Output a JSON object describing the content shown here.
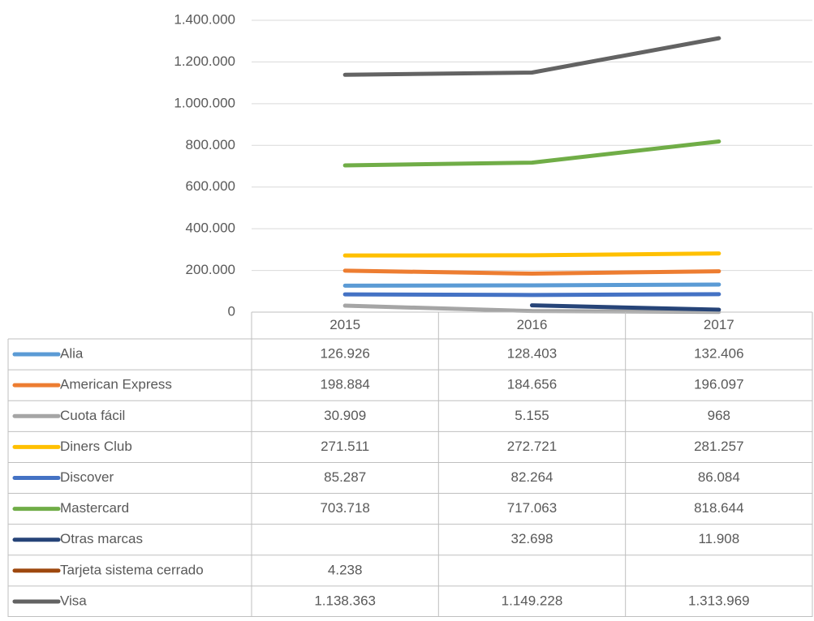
{
  "chart_data": {
    "type": "line",
    "categories": [
      "2015",
      "2016",
      "2017"
    ],
    "ylim": [
      0,
      1400000
    ],
    "yticks": [
      0,
      {
        "value": 200000,
        "label": "200.000"
      },
      {
        "value": 400000,
        "label": "400.000"
      },
      {
        "value": 600000,
        "label": "600.000"
      },
      {
        "value": 800000,
        "label": "800.000"
      },
      {
        "value": 1000000,
        "label": "1.000.000"
      },
      {
        "value": 1200000,
        "label": "1.200.000"
      },
      {
        "value": 1400000,
        "label": "1.400.000"
      }
    ],
    "grid": true,
    "series": [
      {
        "name": "Alia",
        "color": "#5b9bd5",
        "values": [
          126926,
          128403,
          132406
        ],
        "value_labels": [
          "126.926",
          "128.403",
          "132.406"
        ]
      },
      {
        "name": "American Express",
        "color": "#ed7d31",
        "values": [
          198884,
          184656,
          196097
        ],
        "value_labels": [
          "198.884",
          "184.656",
          "196.097"
        ]
      },
      {
        "name": "Cuota fácil",
        "color": "#a5a5a5",
        "values": [
          30909,
          5155,
          968
        ],
        "value_labels": [
          "30.909",
          "5.155",
          "968"
        ]
      },
      {
        "name": "Diners Club",
        "color": "#ffc000",
        "values": [
          271511,
          272721,
          281257
        ],
        "value_labels": [
          "271.511",
          "272.721",
          "281.257"
        ]
      },
      {
        "name": "Discover",
        "color": "#4472c4",
        "values": [
          85287,
          82264,
          86084
        ],
        "value_labels": [
          "85.287",
          "82.264",
          "86.084"
        ]
      },
      {
        "name": "Mastercard",
        "color": "#70ad47",
        "values": [
          703718,
          717063,
          818644
        ],
        "value_labels": [
          "703.718",
          "717.063",
          "818.644"
        ]
      },
      {
        "name": "Otras marcas",
        "color": "#264478",
        "values": [
          null,
          32698,
          11908
        ],
        "value_labels": [
          null,
          "32.698",
          "11.908"
        ]
      },
      {
        "name": "Tarjeta sistema cerrado",
        "color": "#9e480e",
        "values": [
          4238,
          null,
          null
        ],
        "value_labels": [
          "4.238",
          null,
          null
        ]
      },
      {
        "name": "Visa",
        "color": "#636363",
        "values": [
          1138363,
          1149228,
          1313969
        ],
        "value_labels": [
          "1.138.363",
          "1.149.228",
          "1.313.969"
        ]
      }
    ]
  }
}
